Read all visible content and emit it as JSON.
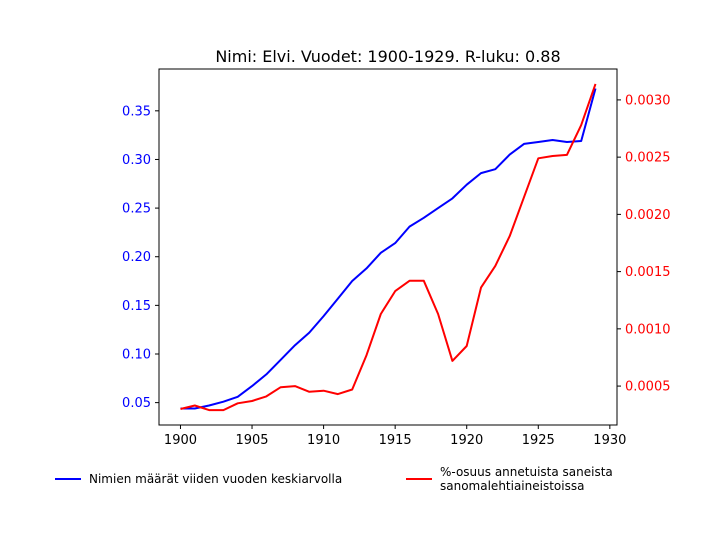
{
  "chart_data": {
    "type": "line",
    "title": "Nimi: Elvi. Vuodet: 1900-1929. R-luku: 0.88",
    "x": [
      1900,
      1901,
      1902,
      1903,
      1904,
      1905,
      1906,
      1907,
      1908,
      1909,
      1910,
      1911,
      1912,
      1913,
      1914,
      1915,
      1916,
      1917,
      1918,
      1919,
      1920,
      1921,
      1922,
      1923,
      1924,
      1925,
      1926,
      1927,
      1928,
      1929
    ],
    "xlim": [
      1898.5,
      1930.5
    ],
    "xticks": [
      1900,
      1905,
      1910,
      1915,
      1920,
      1925,
      1930
    ],
    "y_left": {
      "lim": [
        0.027,
        0.393
      ],
      "ticks": [
        "0.05",
        "0.10",
        "0.15",
        "0.20",
        "0.25",
        "0.30",
        "0.35"
      ],
      "color": "#0000ff"
    },
    "y_right": {
      "lim": [
        0.00016,
        0.00327
      ],
      "ticks": [
        "0.0005",
        "0.0010",
        "0.0015",
        "0.0020",
        "0.0025",
        "0.0030"
      ],
      "color": "#ff0000"
    },
    "series": [
      {
        "name": "Nimien määrät viiden vuoden keskiarvolla",
        "axis": "left",
        "color": "#0000ff",
        "values": [
          0.044,
          0.044,
          0.047,
          0.051,
          0.056,
          0.067,
          0.079,
          0.094,
          0.109,
          0.122,
          0.139,
          0.157,
          0.175,
          0.188,
          0.204,
          0.214,
          0.231,
          0.24,
          0.25,
          0.26,
          0.274,
          0.286,
          0.29,
          0.305,
          0.316,
          0.318,
          0.32,
          0.318,
          0.319,
          0.373
        ]
      },
      {
        "name": "%-osuus annetuista saneista\n sanomalehtiaineistoissa",
        "axis": "right",
        "color": "#ff0000",
        "values": [
          0.0003,
          0.00033,
          0.00029,
          0.00029,
          0.00035,
          0.00037,
          0.00041,
          0.00049,
          0.0005,
          0.00045,
          0.00046,
          0.00043,
          0.00047,
          0.00077,
          0.00113,
          0.00133,
          0.00142,
          0.00142,
          0.00113,
          0.00072,
          0.00085,
          0.00136,
          0.00155,
          0.00181,
          0.00215,
          0.00249,
          0.00251,
          0.00252,
          0.00278,
          0.00314
        ]
      }
    ],
    "grid": false,
    "legend_placement": "below plot"
  }
}
